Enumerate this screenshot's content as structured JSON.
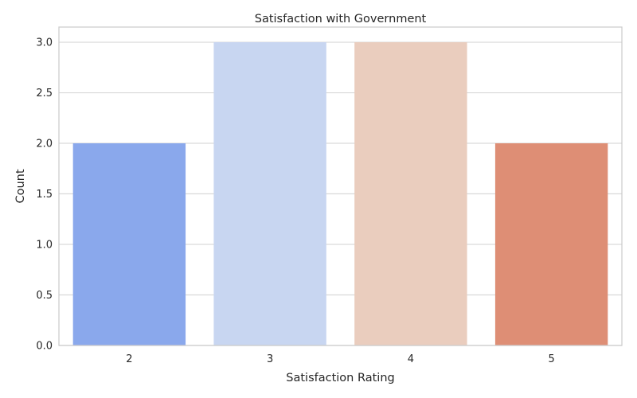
{
  "chart_data": {
    "type": "bar",
    "title": "Satisfaction with Government",
    "xlabel": "Satisfaction Rating",
    "ylabel": "Count",
    "categories": [
      "2",
      "3",
      "4",
      "5"
    ],
    "values": [
      2,
      3,
      3,
      2
    ],
    "colors": [
      "#8aa8ec",
      "#c8d6f1",
      "#eacdbe",
      "#de8e75"
    ],
    "ylim": [
      0,
      3.15
    ],
    "yticks": [
      0.0,
      0.5,
      1.0,
      1.5,
      2.0,
      2.5,
      3.0
    ],
    "ytick_labels": [
      "0.0",
      "0.5",
      "1.0",
      "1.5",
      "2.0",
      "2.5",
      "3.0"
    ],
    "grid": true,
    "style": {
      "grid_color": "#d9d9d9",
      "frame_color": "#cccccc"
    }
  }
}
